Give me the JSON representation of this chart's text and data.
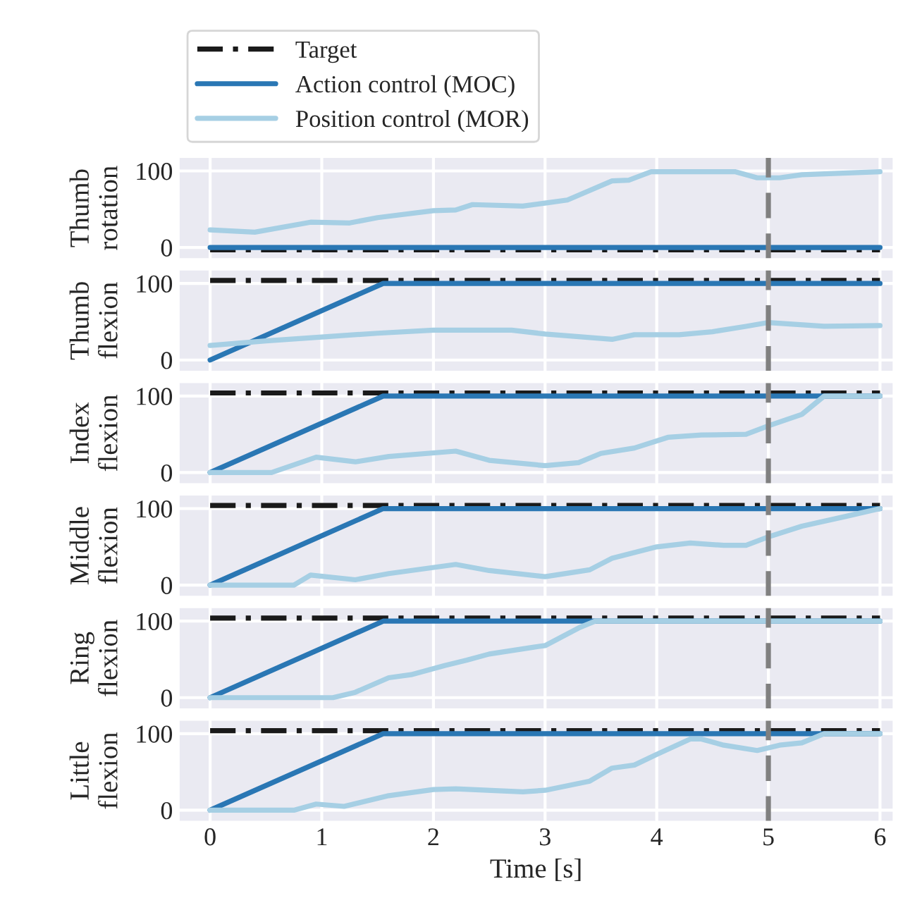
{
  "chart_data": [
    {
      "type": "line",
      "ylabel": "Thumb\nrotation",
      "xlim": [
        -0.28,
        6.12
      ],
      "xticks": [
        0,
        1,
        2,
        3,
        4,
        5,
        6
      ],
      "ylim": [
        -15,
        118
      ],
      "yticks": [
        0,
        100
      ],
      "grid": true,
      "tick_labels": "y",
      "legend": "top left",
      "ref_lines": [
        {
          "axis": "x",
          "value": 5,
          "color": "#808080",
          "line_style": "dashed"
        }
      ],
      "series": [
        {
          "name": "Target",
          "color": "#1a1a1a",
          "line_style": "dashdot",
          "x": [
            0,
            6
          ],
          "values": [
            -3,
            -3
          ]
        },
        {
          "name": "Action control (MOC)",
          "color": "#2a77b4",
          "line_style": "solid",
          "x": [
            0,
            6
          ],
          "values": [
            0,
            0
          ]
        },
        {
          "name": "Position control (MOR)",
          "color": "#a6cfe4",
          "line_style": "solid",
          "x": [
            0,
            0.4,
            0.9,
            1.25,
            1.5,
            2,
            2.2,
            2.35,
            2.8,
            3,
            3.2,
            3.6,
            3.75,
            3.95,
            4.7,
            4.9,
            5.1,
            5.3,
            6
          ],
          "values": [
            23,
            20,
            33,
            32,
            39,
            48,
            49,
            56,
            54,
            58,
            62,
            87,
            88,
            99,
            99,
            91,
            91,
            95,
            99
          ]
        }
      ]
    },
    {
      "type": "line",
      "ylabel": "Thumb\nflexion",
      "xlim": [
        -0.28,
        6.12
      ],
      "xticks": [
        0,
        1,
        2,
        3,
        4,
        5,
        6
      ],
      "ylim": [
        -15,
        118
      ],
      "yticks": [
        0,
        100
      ],
      "grid": true,
      "tick_labels": "y",
      "ref_lines": [
        {
          "axis": "x",
          "value": 5,
          "color": "#808080",
          "line_style": "dashed"
        }
      ],
      "series": [
        {
          "color": "#1a1a1a",
          "line_style": "dashdot",
          "x": [
            0,
            6
          ],
          "values": [
            104,
            104
          ]
        },
        {
          "color": "#2a77b4",
          "line_style": "solid",
          "x": [
            0,
            1.55,
            6
          ],
          "values": [
            0,
            100,
            100
          ]
        },
        {
          "color": "#a6cfe4",
          "line_style": "solid",
          "x": [
            0,
            0.5,
            1,
            1.5,
            2,
            2.7,
            3,
            3.6,
            3.8,
            4.2,
            4.5,
            4.8,
            5,
            5.5,
            6
          ],
          "values": [
            19,
            25,
            30,
            35,
            39,
            39,
            34,
            27,
            33,
            33,
            37,
            44,
            49,
            44,
            45
          ]
        }
      ]
    },
    {
      "type": "line",
      "ylabel": "Index\nflexion",
      "xlim": [
        -0.28,
        6.12
      ],
      "xticks": [
        0,
        1,
        2,
        3,
        4,
        5,
        6
      ],
      "ylim": [
        -15,
        118
      ],
      "yticks": [
        0,
        100
      ],
      "grid": true,
      "tick_labels": "y",
      "ref_lines": [
        {
          "axis": "x",
          "value": 5,
          "color": "#808080",
          "line_style": "dashed"
        }
      ],
      "series": [
        {
          "color": "#1a1a1a",
          "line_style": "dashdot",
          "x": [
            0,
            6
          ],
          "values": [
            104,
            104
          ]
        },
        {
          "color": "#2a77b4",
          "line_style": "solid",
          "x": [
            0,
            1.55,
            6
          ],
          "values": [
            0,
            100,
            100
          ]
        },
        {
          "color": "#a6cfe4",
          "line_style": "solid",
          "x": [
            0,
            0.55,
            0.95,
            1.3,
            1.6,
            2.2,
            2.5,
            3,
            3.3,
            3.5,
            3.8,
            4.1,
            4.4,
            4.8,
            5,
            5.3,
            5.5,
            6
          ],
          "values": [
            0,
            0,
            20,
            14,
            21,
            28,
            16,
            9,
            13,
            25,
            32,
            46,
            49,
            50,
            61,
            76,
            100,
            100
          ]
        }
      ]
    },
    {
      "type": "line",
      "ylabel": "Middle\nflexion",
      "xlim": [
        -0.28,
        6.12
      ],
      "xticks": [
        0,
        1,
        2,
        3,
        4,
        5,
        6
      ],
      "ylim": [
        -15,
        118
      ],
      "yticks": [
        0,
        100
      ],
      "grid": true,
      "tick_labels": "y",
      "ref_lines": [
        {
          "axis": "x",
          "value": 5,
          "color": "#808080",
          "line_style": "dashed"
        }
      ],
      "series": [
        {
          "color": "#1a1a1a",
          "line_style": "dashdot",
          "x": [
            0,
            6
          ],
          "values": [
            104,
            104
          ]
        },
        {
          "color": "#2a77b4",
          "line_style": "solid",
          "x": [
            0,
            1.55,
            6
          ],
          "values": [
            0,
            100,
            100
          ]
        },
        {
          "color": "#a6cfe4",
          "line_style": "solid",
          "x": [
            0,
            0.75,
            0.9,
            1.3,
            1.6,
            2.2,
            2.5,
            3,
            3.4,
            3.6,
            4,
            4.3,
            4.6,
            4.8,
            5,
            5.3,
            5.7,
            6
          ],
          "values": [
            0,
            0,
            13,
            7,
            15,
            27,
            19,
            11,
            20,
            35,
            50,
            55,
            52,
            52,
            63,
            77,
            90,
            100
          ]
        }
      ]
    },
    {
      "type": "line",
      "ylabel": "Ring\nflexion",
      "xlim": [
        -0.28,
        6.12
      ],
      "xticks": [
        0,
        1,
        2,
        3,
        4,
        5,
        6
      ],
      "ylim": [
        -15,
        118
      ],
      "yticks": [
        0,
        100
      ],
      "grid": true,
      "tick_labels": "y",
      "ref_lines": [
        {
          "axis": "x",
          "value": 5,
          "color": "#808080",
          "line_style": "dashed"
        }
      ],
      "series": [
        {
          "color": "#1a1a1a",
          "line_style": "dashdot",
          "x": [
            0,
            6
          ],
          "values": [
            104,
            104
          ]
        },
        {
          "color": "#2a77b4",
          "line_style": "solid",
          "x": [
            0,
            1.55,
            6
          ],
          "values": [
            0,
            100,
            100
          ]
        },
        {
          "color": "#a6cfe4",
          "line_style": "solid",
          "x": [
            0,
            1.1,
            1.3,
            1.6,
            1.8,
            2.1,
            2.3,
            2.5,
            2.9,
            3,
            3.3,
            3.45,
            6
          ],
          "values": [
            0,
            0,
            7,
            26,
            30,
            42,
            49,
            57,
            66,
            68,
            91,
            100,
            100
          ]
        }
      ]
    },
    {
      "type": "line",
      "ylabel": "Little\nflexion",
      "xlabel": "Time [s]",
      "xlim": [
        -0.28,
        6.12
      ],
      "xticks": [
        0,
        1,
        2,
        3,
        4,
        5,
        6
      ],
      "ylim": [
        -15,
        118
      ],
      "yticks": [
        0,
        100
      ],
      "grid": true,
      "ref_lines": [
        {
          "axis": "x",
          "value": 5,
          "color": "#808080",
          "line_style": "dashed"
        }
      ],
      "series": [
        {
          "color": "#1a1a1a",
          "line_style": "dashdot",
          "x": [
            0,
            6
          ],
          "values": [
            104,
            104
          ]
        },
        {
          "color": "#2a77b4",
          "line_style": "solid",
          "x": [
            0,
            1.55,
            6
          ],
          "values": [
            0,
            100,
            100
          ]
        },
        {
          "color": "#a6cfe4",
          "line_style": "solid",
          "x": [
            0,
            0.75,
            0.95,
            1.2,
            1.6,
            2,
            2.2,
            2.8,
            3,
            3.4,
            3.6,
            3.8,
            4,
            4.3,
            4.4,
            4.6,
            4.9,
            5.1,
            5.3,
            5.5,
            6
          ],
          "values": [
            0,
            0,
            8,
            5,
            19,
            27,
            28,
            24,
            26,
            38,
            55,
            59,
            73,
            93,
            93,
            85,
            78,
            85,
            88,
            100,
            100
          ]
        }
      ]
    }
  ]
}
